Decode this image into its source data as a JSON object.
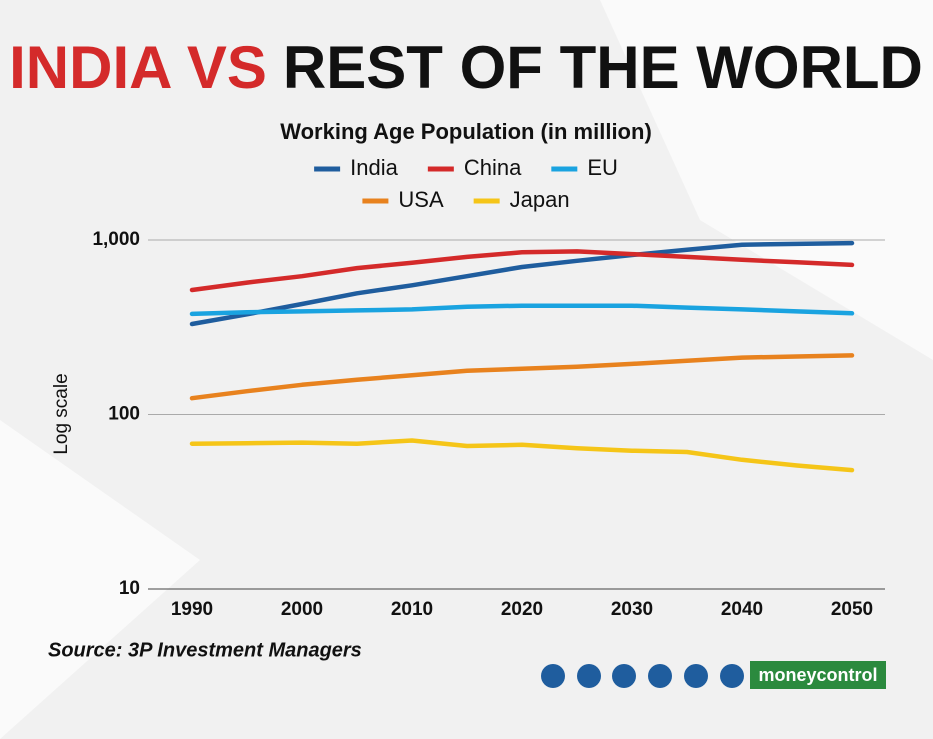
{
  "chart_data": {
    "type": "line",
    "title_parts": [
      "INDIA VS",
      "REST OF THE WORLD"
    ],
    "title_colors": [
      "#d42a2a",
      "#111111"
    ],
    "subtitle": "Working Age Population (in million)",
    "y_label": "Log scale",
    "source": "Source: 3P Investment Managers",
    "brand": "moneycontrol",
    "log_scale": true,
    "grid": true,
    "x": [
      1990,
      1995,
      2000,
      2005,
      2010,
      2015,
      2020,
      2025,
      2030,
      2035,
      2040,
      2045,
      2050
    ],
    "xlim": [
      1986,
      2053
    ],
    "xticks": [
      1990,
      2000,
      2010,
      2020,
      2030,
      2040,
      2050
    ],
    "ylim": [
      10,
      1000
    ],
    "yticks": [
      10,
      100,
      {
        "value": 1000,
        "label": "1,000"
      }
    ],
    "series": [
      {
        "name": "India",
        "color": "#1f5d9e",
        "values": [
          330,
          375,
          430,
          495,
          550,
          620,
          700,
          760,
          820,
          880,
          940,
          950,
          960
        ]
      },
      {
        "name": "China",
        "color": "#d42a2a",
        "values": [
          517,
          570,
          620,
          690,
          740,
          800,
          850,
          860,
          830,
          800,
          770,
          745,
          720
        ]
      },
      {
        "name": "EU",
        "color": "#1aa3e0",
        "values": [
          377,
          385,
          390,
          395,
          400,
          415,
          420,
          420,
          420,
          410,
          400,
          390,
          380
        ]
      },
      {
        "name": "USA",
        "color": "#e8821e",
        "values": [
          124,
          136,
          148,
          158,
          168,
          178,
          183,
          188,
          195,
          203,
          212,
          215,
          218
        ]
      },
      {
        "name": "Japan",
        "color": "#f5c518",
        "values": [
          68,
          68.5,
          69,
          68,
          71,
          66,
          67,
          64,
          62,
          61,
          55,
          51,
          48
        ]
      }
    ]
  }
}
